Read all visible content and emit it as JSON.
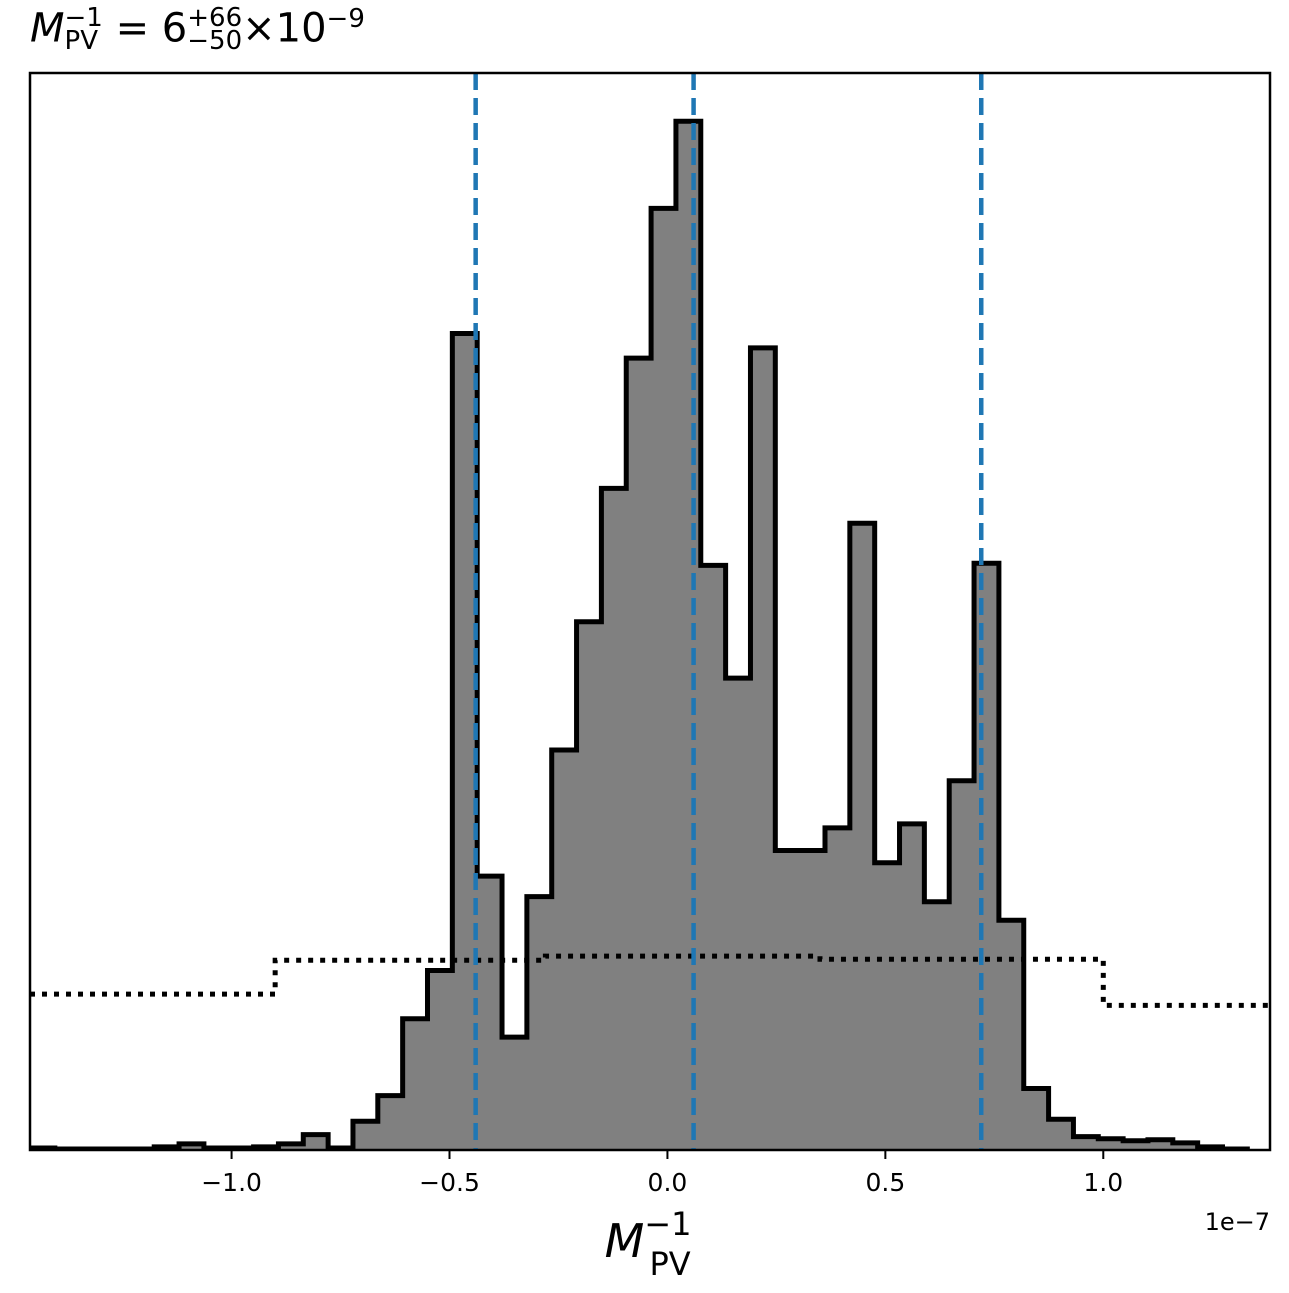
{
  "title": {
    "symbol": "M",
    "sup": "−1",
    "sub": "PV",
    "equals": "=",
    "value": "6",
    "upper": "+66",
    "lower": "−50",
    "times": "×",
    "base": "10",
    "exp": "−9"
  },
  "chart_data": {
    "type": "histogram",
    "xlim": [
      -1.4625e-07,
      1.3825e-07
    ],
    "ylim": [
      0,
      1.05
    ],
    "offset_text": "1e−7",
    "xticks": [
      -1e-07,
      -5e-08,
      0.0,
      5e-08,
      1e-07
    ],
    "xtick_labels": [
      "−1.0",
      "−0.5",
      "0.0",
      "0.5",
      "1.0"
    ],
    "xlabel": {
      "symbol": "M",
      "sup": "−1",
      "sub": "PV"
    },
    "posterior_bin_width": 5.7e-09,
    "posterior_start": -1.4625e-07,
    "posterior_heights": [
      0.002,
      0.001,
      0.001,
      0.001,
      0.001,
      0.003,
      0.006,
      0.002,
      0.002,
      0.003,
      0.006,
      0.015,
      0.002,
      0.028,
      0.053,
      0.128,
      0.175,
      0.796,
      0.267,
      0.11,
      0.247,
      0.39,
      0.515,
      0.645,
      0.772,
      0.918,
      1.003,
      0.57,
      0.46,
      0.782,
      0.292,
      0.292,
      0.314,
      0.611,
      0.28,
      0.318,
      0.242,
      0.36,
      0.572,
      0.224,
      0.06,
      0.03,
      0.013,
      0.011,
      0.009,
      0.01,
      0.007,
      0.003,
      0.001
    ],
    "prior_steps": [
      {
        "x0": -1.4625e-07,
        "x1": -9e-08,
        "y": 0.152
      },
      {
        "x0": -9e-08,
        "x1": -2.8e-08,
        "y": 0.185
      },
      {
        "x0": -2.8e-08,
        "x1": 3.5e-08,
        "y": 0.189
      },
      {
        "x0": 3.5e-08,
        "x1": 1e-07,
        "y": 0.186
      },
      {
        "x0": 1e-07,
        "x1": 1.3825e-07,
        "y": 0.141
      }
    ],
    "quantile_lines": [
      -4.4e-08,
      6e-09,
      7.2e-08
    ],
    "colors": {
      "fill": "#808080",
      "edge": "#000000",
      "quantile": "#1f77b4",
      "prior": "#000000"
    },
    "grid": false
  }
}
